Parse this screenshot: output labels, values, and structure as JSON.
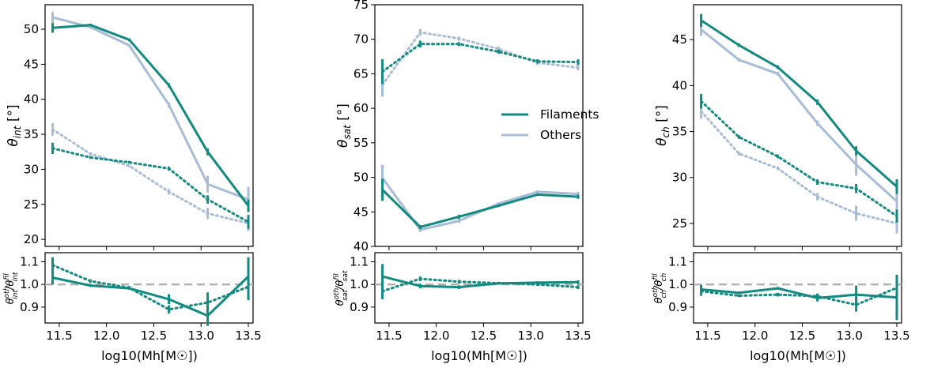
{
  "colors": {
    "filaments": "#138a80",
    "others": "#a9bcd6",
    "reference": "#b0b0b0"
  },
  "legend": {
    "filaments_label": "Filaments",
    "others_label": "Others"
  },
  "chart_data": [
    {
      "type": "line",
      "title": "",
      "xlabel": "log10(Mh[M☉])",
      "ylabel": "θint [°]",
      "ylabel_symbol": "θ",
      "ylabel_sub": "int",
      "ylabel_unit": " [°]",
      "xlim": [
        11.35,
        13.55
      ],
      "ylim": [
        19,
        53.5
      ],
      "xticks": [
        11.5,
        12.0,
        12.5,
        13.0,
        13.5
      ],
      "yticks": [
        20,
        25,
        30,
        35,
        40,
        45,
        50
      ],
      "x": [
        11.43,
        11.83,
        12.24,
        12.66,
        13.07,
        13.5
      ],
      "series": [
        {
          "name": "Filaments",
          "style": "solid",
          "values": [
            50.2,
            50.6,
            48.5,
            42.0,
            32.5,
            24.8
          ],
          "errors": [
            0.7,
            0.2,
            0.2,
            0.3,
            0.5,
            0.9
          ]
        },
        {
          "name": "Others",
          "style": "solid",
          "values": [
            51.7,
            50.3,
            47.7,
            39.2,
            27.9,
            25.7
          ],
          "errors": [
            0.8,
            0.2,
            0.2,
            0.4,
            1.2,
            1.8
          ]
        },
        {
          "name": "Filaments",
          "style": "dotted",
          "values": [
            33.0,
            31.7,
            31.0,
            30.1,
            25.7,
            22.5
          ],
          "errors": [
            0.8,
            0.2,
            0.2,
            0.3,
            0.6,
            1.0
          ]
        },
        {
          "name": "Others",
          "style": "dotted",
          "values": [
            35.7,
            32.2,
            30.5,
            26.8,
            23.7,
            22.3
          ],
          "errors": [
            0.9,
            0.2,
            0.2,
            0.4,
            0.8,
            1.1
          ]
        }
      ]
    },
    {
      "type": "line",
      "title": "",
      "xlabel": "log10(Mh[M☉])",
      "ylabel": "θoth int / θfil int",
      "ratio_panel": true,
      "ratio_sub": "int",
      "xlim": [
        11.35,
        13.55
      ],
      "ylim": [
        0.83,
        1.14
      ],
      "xticks": [
        11.5,
        12.0,
        12.5,
        13.0,
        13.5
      ],
      "yticks": [
        0.9,
        1.0,
        1.1
      ],
      "yticklabels": [
        "0.9",
        "1.0",
        "1.1"
      ],
      "reference_line": 1.0,
      "x": [
        11.43,
        11.83,
        12.24,
        12.66,
        13.07,
        13.5
      ],
      "series": [
        {
          "name": "Filaments",
          "style": "solid",
          "values": [
            1.03,
            0.995,
            0.983,
            0.935,
            0.862,
            1.035
          ],
          "errors": [
            0.03,
            0.006,
            0.006,
            0.022,
            0.045,
            0.085
          ]
        },
        {
          "name": "Filaments",
          "style": "dotted",
          "values": [
            1.085,
            1.015,
            0.985,
            0.89,
            0.92,
            0.99
          ],
          "errors": [
            0.035,
            0.008,
            0.008,
            0.018,
            0.045,
            0.06
          ]
        }
      ]
    },
    {
      "type": "line",
      "title": "",
      "xlabel": "log10(Mh[M☉])",
      "ylabel": "θsat [°]",
      "ylabel_symbol": "θ",
      "ylabel_sub": "sat",
      "ylabel_unit": " [°]",
      "xlim": [
        11.35,
        13.55
      ],
      "ylim": [
        40,
        75
      ],
      "xticks": [
        11.5,
        12.0,
        12.5,
        13.0,
        13.5
      ],
      "yticks": [
        40,
        45,
        50,
        55,
        60,
        65,
        70,
        75
      ],
      "x": [
        11.43,
        11.83,
        12.24,
        12.66,
        13.07,
        13.5
      ],
      "series": [
        {
          "name": "Filaments",
          "style": "solid",
          "values": [
            48.2,
            42.8,
            44.3,
            45.9,
            47.5,
            47.2
          ],
          "errors": [
            1.6,
            0.3,
            0.3,
            0.2,
            0.2,
            0.3
          ]
        },
        {
          "name": "Others",
          "style": "solid",
          "values": [
            49.9,
            42.4,
            43.7,
            46.2,
            47.9,
            47.6
          ],
          "errors": [
            1.9,
            0.3,
            0.3,
            0.2,
            0.2,
            0.3
          ]
        },
        {
          "name": "Filaments",
          "style": "dotted",
          "values": [
            65.3,
            69.3,
            69.3,
            68.2,
            66.8,
            66.7
          ],
          "errors": [
            1.8,
            0.5,
            0.3,
            0.3,
            0.3,
            0.4
          ]
        },
        {
          "name": "Others",
          "style": "dotted",
          "values": [
            63.4,
            71.0,
            70.1,
            68.6,
            66.6,
            65.9
          ],
          "errors": [
            1.7,
            0.5,
            0.3,
            0.3,
            0.3,
            0.4
          ]
        }
      ]
    },
    {
      "type": "line",
      "title": "",
      "xlabel": "log10(Mh[M☉])",
      "ylabel": "θoth sat / θfil sat",
      "ratio_panel": true,
      "ratio_sub": "sat",
      "xlim": [
        11.35,
        13.55
      ],
      "ylim": [
        0.83,
        1.14
      ],
      "xticks": [
        11.5,
        12.0,
        12.5,
        13.0,
        13.5
      ],
      "yticks": [
        0.9,
        1.0,
        1.1
      ],
      "yticklabels": [
        "0.9",
        "1.0",
        "1.1"
      ],
      "reference_line": 1.0,
      "x": [
        11.43,
        11.83,
        12.24,
        12.66,
        13.07,
        13.5
      ],
      "series": [
        {
          "name": "Filaments",
          "style": "solid",
          "values": [
            1.035,
            0.993,
            0.988,
            1.005,
            1.008,
            1.01
          ],
          "errors": [
            0.055,
            0.01,
            0.008,
            0.006,
            0.006,
            0.008
          ]
        },
        {
          "name": "Filaments",
          "style": "dotted",
          "values": [
            0.97,
            1.025,
            1.012,
            1.006,
            1.0,
            0.988
          ],
          "errors": [
            0.035,
            0.01,
            0.008,
            0.006,
            0.006,
            0.008
          ]
        }
      ]
    },
    {
      "type": "line",
      "title": "",
      "xlabel": "log10(Mh[M☉])",
      "ylabel": "θch [°]",
      "ylabel_symbol": "θ",
      "ylabel_sub": "ch",
      "ylabel_unit": " [°]",
      "xlim": [
        11.35,
        13.55
      ],
      "ylim": [
        22.5,
        48.8
      ],
      "xticks": [
        11.5,
        12.0,
        12.5,
        13.0,
        13.5
      ],
      "yticks": [
        25,
        30,
        35,
        40,
        45
      ],
      "x": [
        11.43,
        11.83,
        12.24,
        12.66,
        13.07,
        13.5
      ],
      "series": [
        {
          "name": "Filaments",
          "style": "solid",
          "values": [
            47.1,
            44.4,
            42.0,
            38.2,
            32.9,
            29.0
          ],
          "errors": [
            0.7,
            0.2,
            0.2,
            0.3,
            0.5,
            0.8
          ]
        },
        {
          "name": "Others",
          "style": "solid",
          "values": [
            46.1,
            42.8,
            41.3,
            35.9,
            31.4,
            27.4
          ],
          "errors": [
            0.7,
            0.2,
            0.2,
            0.3,
            1.2,
            1.8
          ]
        },
        {
          "name": "Filaments",
          "style": "dotted",
          "values": [
            38.3,
            34.4,
            32.3,
            29.5,
            28.8,
            25.8
          ],
          "errors": [
            0.8,
            0.2,
            0.2,
            0.3,
            0.5,
            0.7
          ]
        },
        {
          "name": "Others",
          "style": "dotted",
          "values": [
            37.2,
            32.6,
            31.0,
            27.9,
            26.1,
            25.0
          ],
          "errors": [
            0.8,
            0.2,
            0.2,
            0.4,
            0.8,
            1.1
          ]
        }
      ]
    },
    {
      "type": "line",
      "title": "",
      "xlabel": "log10(Mh[M☉])",
      "ylabel": "θoth ch / θfil ch",
      "ratio_panel": true,
      "ratio_sub": "ch",
      "xlim": [
        11.35,
        13.55
      ],
      "ylim": [
        0.83,
        1.14
      ],
      "xticks": [
        11.5,
        12.0,
        12.5,
        13.0,
        13.5
      ],
      "yticks": [
        0.9,
        1.0,
        1.1
      ],
      "yticklabels": [
        "0.9",
        "1.0",
        "1.1"
      ],
      "reference_line": 1.0,
      "x": [
        11.43,
        11.83,
        12.24,
        12.66,
        13.07,
        13.5
      ],
      "series": [
        {
          "name": "Filaments",
          "style": "solid",
          "values": [
            0.978,
            0.963,
            0.983,
            0.94,
            0.955,
            0.943
          ],
          "errors": [
            0.02,
            0.006,
            0.006,
            0.015,
            0.04,
            0.1
          ]
        },
        {
          "name": "Filaments",
          "style": "dotted",
          "values": [
            0.97,
            0.95,
            0.955,
            0.948,
            0.91,
            0.985
          ],
          "errors": [
            0.02,
            0.006,
            0.008,
            0.012,
            0.03,
            0.04
          ]
        }
      ]
    }
  ]
}
